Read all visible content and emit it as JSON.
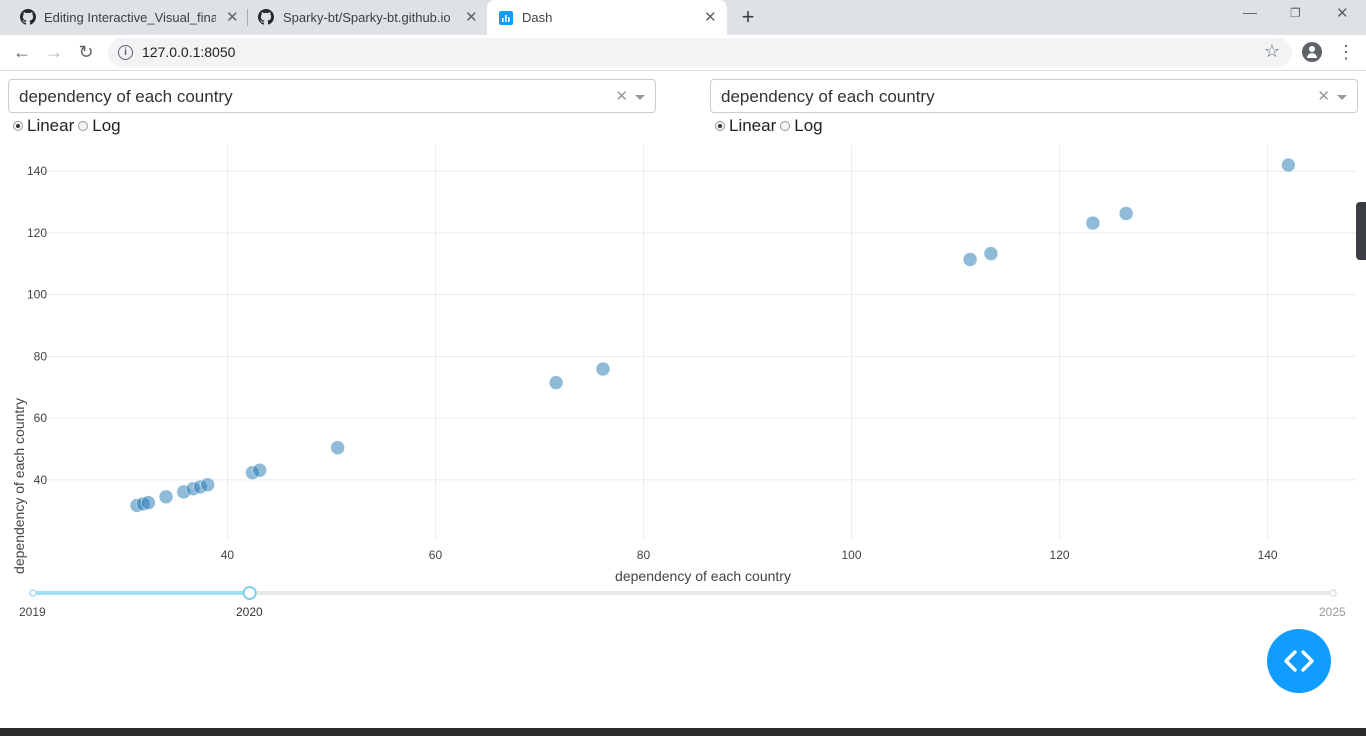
{
  "browser": {
    "tabs": [
      {
        "title": "Editing Interactive_Visual_final",
        "icon": "github-icon"
      },
      {
        "title": "Sparky-bt/Sparky-bt.github.io",
        "icon": "github-icon"
      },
      {
        "title": "Dash",
        "icon": "dash-chart-icon"
      }
    ],
    "active_tab": 2,
    "url": "127.0.0.1:8050"
  },
  "controls": {
    "left": {
      "dropdown_value": "dependency of each country",
      "scale_options": [
        "Linear",
        "Log"
      ],
      "selected_scale": "Linear"
    },
    "right": {
      "dropdown_value": "dependency of each country",
      "scale_options": [
        "Linear",
        "Log"
      ],
      "selected_scale": "Linear"
    }
  },
  "chart_data": {
    "type": "scatter",
    "xlabel": "dependency of each country",
    "ylabel": "dependency of each country",
    "xlim": [
      21.5,
      148.5
    ],
    "ylim": [
      20.5,
      148.5
    ],
    "xticks": [
      40,
      60,
      80,
      100,
      120,
      140
    ],
    "yticks": [
      40,
      60,
      80,
      100,
      120,
      140
    ],
    "grid": true,
    "marker_color": "#1f77b4",
    "points": [
      {
        "x": 31.3,
        "y": 31.7
      },
      {
        "x": 31.9,
        "y": 32.2
      },
      {
        "x": 32.4,
        "y": 32.6
      },
      {
        "x": 34.1,
        "y": 34.5
      },
      {
        "x": 35.8,
        "y": 36.1
      },
      {
        "x": 36.7,
        "y": 37.1
      },
      {
        "x": 37.4,
        "y": 37.7
      },
      {
        "x": 38.1,
        "y": 38.4
      },
      {
        "x": 42.4,
        "y": 42.3
      },
      {
        "x": 43.1,
        "y": 43.1
      },
      {
        "x": 50.6,
        "y": 50.4
      },
      {
        "x": 71.6,
        "y": 71.5
      },
      {
        "x": 76.1,
        "y": 75.9
      },
      {
        "x": 111.4,
        "y": 111.4
      },
      {
        "x": 113.4,
        "y": 113.3
      },
      {
        "x": 123.2,
        "y": 123.2
      },
      {
        "x": 126.4,
        "y": 126.3
      },
      {
        "x": 142.0,
        "y": 142.0
      }
    ]
  },
  "slider": {
    "min_label": "2019",
    "selected_label": "2020",
    "max_label": "2025",
    "min": 2019,
    "max": 2025,
    "value": 2020
  },
  "colors": {
    "accent": "#119dff",
    "slider_track": "#a4dff5",
    "marker": "#1f77b4"
  }
}
